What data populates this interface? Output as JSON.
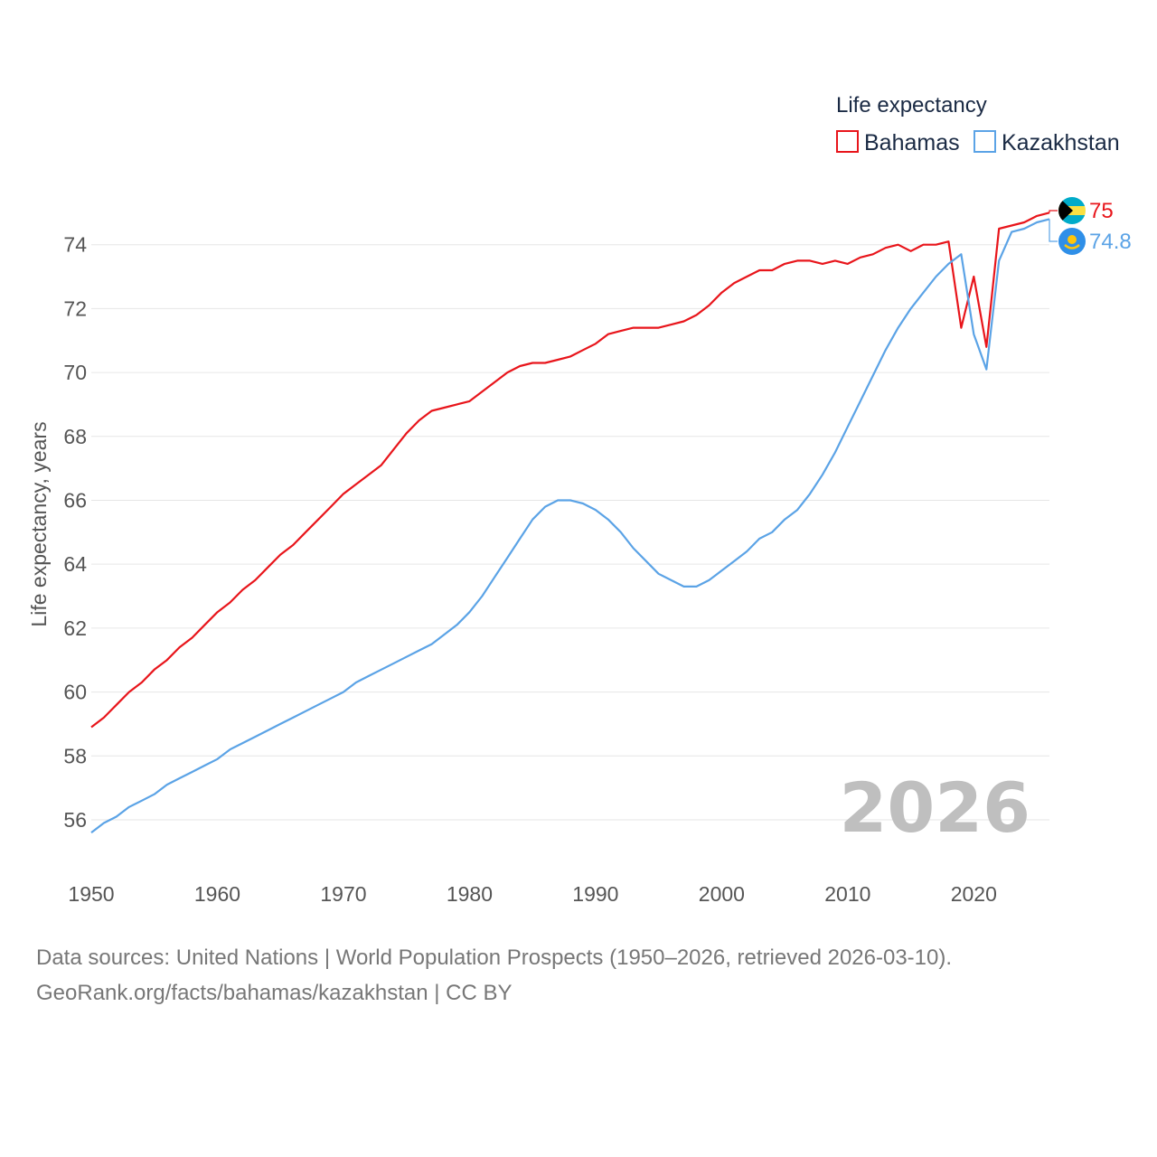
{
  "chart_data": {
    "type": "line",
    "title": "",
    "ylabel": "Life expectancy, years",
    "xlabel": "",
    "xlim": [
      1950,
      2026
    ],
    "ylim": [
      54.5,
      76
    ],
    "xticks": [
      1950,
      1960,
      1970,
      1980,
      1990,
      2000,
      2010,
      2020
    ],
    "yticks": [
      56,
      58,
      60,
      62,
      64,
      66,
      68,
      70,
      72,
      74
    ],
    "grid": true,
    "legend_title": "Life expectancy",
    "legend_position": "top-right",
    "watermark_year": "2026",
    "x": [
      1950,
      1951,
      1952,
      1953,
      1954,
      1955,
      1956,
      1957,
      1958,
      1959,
      1960,
      1961,
      1962,
      1963,
      1964,
      1965,
      1966,
      1967,
      1968,
      1969,
      1970,
      1971,
      1972,
      1973,
      1974,
      1975,
      1976,
      1977,
      1978,
      1979,
      1980,
      1981,
      1982,
      1983,
      1984,
      1985,
      1986,
      1987,
      1988,
      1989,
      1990,
      1991,
      1992,
      1993,
      1994,
      1995,
      1996,
      1997,
      1998,
      1999,
      2000,
      2001,
      2002,
      2003,
      2004,
      2005,
      2006,
      2007,
      2008,
      2009,
      2010,
      2011,
      2012,
      2013,
      2014,
      2015,
      2016,
      2017,
      2018,
      2019,
      2020,
      2021,
      2022,
      2023,
      2024,
      2025,
      2026
    ],
    "series": [
      {
        "name": "Bahamas",
        "color": "#e8151b",
        "end_label": "75",
        "flag_icon": "bahamas-flag-icon",
        "values": [
          58.9,
          59.2,
          59.6,
          60.0,
          60.3,
          60.7,
          61.0,
          61.4,
          61.7,
          62.1,
          62.5,
          62.8,
          63.2,
          63.5,
          63.9,
          64.3,
          64.6,
          65.0,
          65.4,
          65.8,
          66.2,
          66.5,
          66.8,
          67.1,
          67.6,
          68.1,
          68.5,
          68.8,
          68.9,
          69.0,
          69.1,
          69.4,
          69.7,
          70.0,
          70.2,
          70.3,
          70.3,
          70.4,
          70.5,
          70.7,
          70.9,
          71.2,
          71.3,
          71.4,
          71.4,
          71.4,
          71.5,
          71.6,
          71.8,
          72.1,
          72.5,
          72.8,
          73.0,
          73.2,
          73.2,
          73.4,
          73.5,
          73.5,
          73.4,
          73.5,
          73.4,
          73.6,
          73.7,
          73.9,
          74.0,
          73.8,
          74.0,
          74.0,
          74.1,
          71.4,
          73.0,
          70.8,
          74.5,
          74.6,
          74.7,
          74.9,
          75.0
        ]
      },
      {
        "name": "Kazakhstan",
        "color": "#5ba3e6",
        "end_label": "74.8",
        "flag_icon": "kazakhstan-flag-icon",
        "values": [
          55.6,
          55.9,
          56.1,
          56.4,
          56.6,
          56.8,
          57.1,
          57.3,
          57.5,
          57.7,
          57.9,
          58.2,
          58.4,
          58.6,
          58.8,
          59.0,
          59.2,
          59.4,
          59.6,
          59.8,
          60.0,
          60.3,
          60.5,
          60.7,
          60.9,
          61.1,
          61.3,
          61.5,
          61.8,
          62.1,
          62.5,
          63.0,
          63.6,
          64.2,
          64.8,
          65.4,
          65.8,
          66.0,
          66.0,
          65.9,
          65.7,
          65.4,
          65.0,
          64.5,
          64.1,
          63.7,
          63.5,
          63.3,
          63.3,
          63.5,
          63.8,
          64.1,
          64.4,
          64.8,
          65.0,
          65.4,
          65.7,
          66.2,
          66.8,
          67.5,
          68.3,
          69.1,
          69.9,
          70.7,
          71.4,
          72.0,
          72.5,
          73.0,
          73.4,
          73.7,
          71.2,
          70.1,
          73.5,
          74.4,
          74.5,
          74.7,
          74.8
        ]
      }
    ]
  },
  "footer": {
    "line1": "Data sources: United Nations | World Population Prospects (1950–2026, retrieved 2026-03-10).",
    "line2": "GeoRank.org/facts/bahamas/kazakhstan | CC BY"
  }
}
